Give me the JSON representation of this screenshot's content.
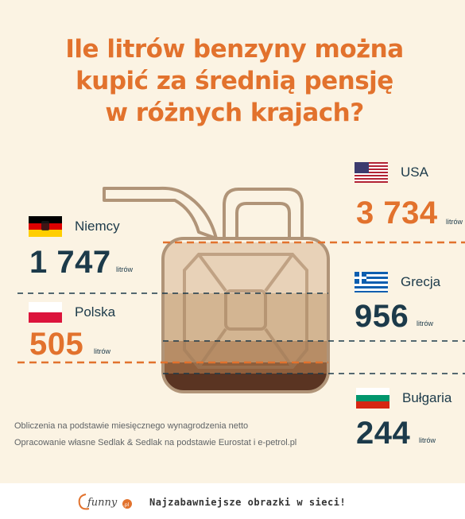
{
  "chart_data": {
    "type": "bar",
    "title": "Ile litrów benzyny można kupić za średnią pensję w różnych krajach?",
    "unit": "litrów",
    "categories": [
      "USA",
      "Niemcy",
      "Grecja",
      "Polska",
      "Bułgaria"
    ],
    "values": [
      3734,
      1747,
      956,
      505,
      244
    ],
    "value_labels": [
      "3 734",
      "1 747",
      "956",
      "505",
      "244"
    ],
    "highlight_color": "#e2722d",
    "text_color": "#1c3a4a"
  },
  "title_lines": [
    "Ile litrów benzyny można",
    "kupić za średnią pensję",
    "w różnych krajach?"
  ],
  "countries": {
    "usa": {
      "name": "USA",
      "value": "3 734",
      "unit": "litrów"
    },
    "niemcy": {
      "name": "Niemcy",
      "value": "1 747",
      "unit": "litrów"
    },
    "grecja": {
      "name": "Grecja",
      "value": "956",
      "unit": "litrów"
    },
    "polska": {
      "name": "Polska",
      "value": "505",
      "unit": "litrów"
    },
    "bulgaria": {
      "name": "Bułgaria",
      "value": "244",
      "unit": "litrów"
    }
  },
  "source_lines": [
    "Obliczenia na podstawie miesięcznego wynagrodzenia netto",
    "Opracowanie własne Sedlak & Sedlak na podstawie Eurostat i e-petrol.pl"
  ],
  "footer": {
    "logo_text": "funny",
    "logo_suffix": ".pl",
    "tagline": "Najzabawniejsze obrazki w sieci!"
  },
  "colors": {
    "background": "#fbf3e3",
    "orange": "#e2722d",
    "navy": "#1c3a4a",
    "can_outline": "#b09478"
  }
}
